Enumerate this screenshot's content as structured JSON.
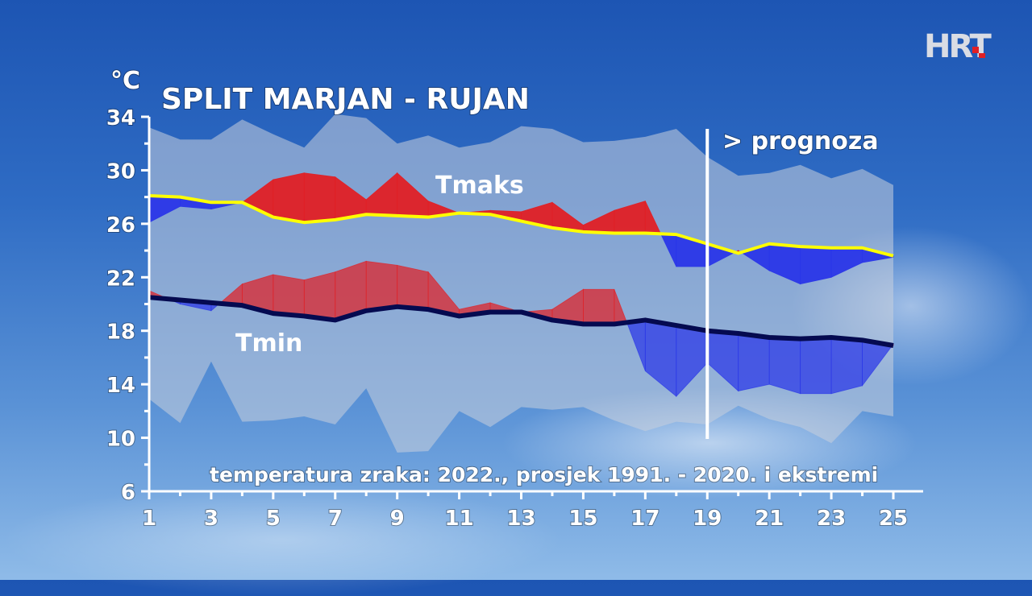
{
  "logo": {
    "text": "HRT"
  },
  "chart_data": {
    "type": "area",
    "title": "SPLIT MARJAN - RUJAN",
    "subtitle": "temperatura zraka: 2022., prosjek 1991. - 2020. i ekstremi",
    "ylabel": "°C",
    "forecast_label": "> prognoza",
    "forecast_start_day": 19,
    "xlim": [
      1,
      25
    ],
    "ylim": [
      6,
      34
    ],
    "xticks": [
      1,
      3,
      5,
      7,
      9,
      11,
      13,
      15,
      17,
      19,
      21,
      23,
      25
    ],
    "yticks": [
      6,
      10,
      14,
      18,
      22,
      26,
      30,
      34
    ],
    "x": [
      1,
      2,
      3,
      4,
      5,
      6,
      7,
      8,
      9,
      10,
      11,
      12,
      13,
      14,
      15,
      16,
      17,
      18,
      19,
      20,
      21,
      22,
      23,
      24,
      25
    ],
    "series": [
      {
        "name": "Tmaks",
        "color": "#ffff00",
        "label_color": "#ffff00",
        "values": [
          28.1,
          28.0,
          27.6,
          27.6,
          26.5,
          26.1,
          26.3,
          26.7,
          26.6,
          26.5,
          26.8,
          26.7,
          26.2,
          25.7,
          25.4,
          25.3,
          25.3,
          25.2,
          24.5,
          23.8,
          24.5,
          24.3,
          24.2,
          24.2,
          23.6
        ]
      },
      {
        "name": "Tmin",
        "color": "#050a50",
        "label_color": "#050a50",
        "values": [
          20.5,
          20.3,
          20.1,
          19.9,
          19.3,
          19.1,
          18.8,
          19.5,
          19.8,
          19.6,
          19.1,
          19.4,
          19.4,
          18.8,
          18.5,
          18.5,
          18.8,
          18.4,
          18.0,
          17.8,
          17.5,
          17.4,
          17.5,
          17.3,
          16.9
        ]
      },
      {
        "name": "2022 Tmaks",
        "values": [
          26.1,
          27.3,
          27.1,
          27.6,
          29.3,
          29.8,
          29.5,
          27.8,
          29.8,
          27.7,
          26.8,
          27.0,
          26.9,
          27.6,
          25.9,
          27.0,
          27.7,
          22.8,
          22.8,
          24.0,
          22.5,
          21.5,
          22.0,
          23.1,
          23.5
        ]
      },
      {
        "name": "2022 Tmin",
        "values": [
          21.0,
          20.0,
          19.5,
          21.5,
          22.2,
          21.8,
          22.4,
          23.2,
          22.9,
          22.4,
          19.6,
          20.1,
          19.4,
          19.6,
          21.1,
          21.1,
          15.0,
          13.1,
          15.6,
          13.5,
          14.0,
          13.3,
          13.3,
          13.9,
          17.0
        ]
      },
      {
        "name": "maks ekstrem",
        "values": [
          33.2,
          32.3,
          32.3,
          33.8,
          32.7,
          31.7,
          34.2,
          33.9,
          32.0,
          32.6,
          31.7,
          32.1,
          33.3,
          33.1,
          32.1,
          32.2,
          32.5,
          33.1,
          31.0,
          29.6,
          29.8,
          30.4,
          29.4,
          30.1,
          28.9
        ]
      },
      {
        "name": "min ekstrem",
        "values": [
          12.9,
          11.1,
          15.7,
          11.2,
          11.3,
          11.6,
          11.0,
          13.7,
          8.9,
          9.0,
          12.0,
          10.8,
          12.3,
          12.1,
          12.3,
          11.3,
          10.5,
          11.2,
          11.0,
          12.4,
          11.4,
          10.8,
          9.6,
          12.0,
          11.6
        ]
      }
    ],
    "colors": {
      "above": "#e02025",
      "below": "#2a36e8",
      "band": "#c9cfdc",
      "axis": "#ffffff"
    },
    "grid": false,
    "legend": "inline-labels"
  }
}
